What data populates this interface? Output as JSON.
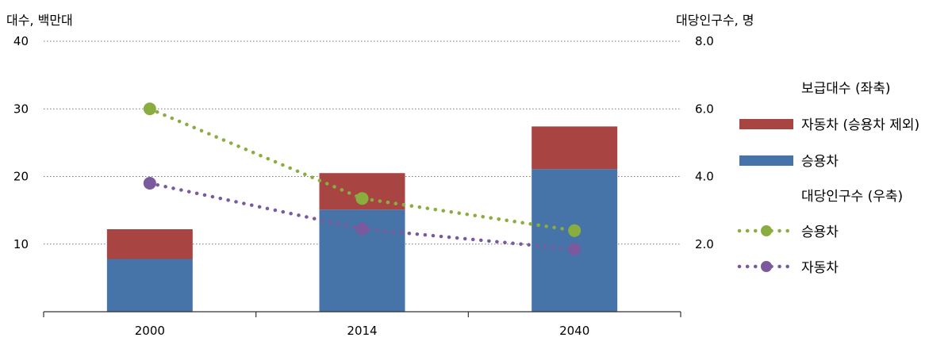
{
  "chart_data": {
    "type": "bar",
    "left_axis_title": "대수, 백만대",
    "right_axis_title": "대당인구수, 명",
    "left_ticks": [
      "10",
      "20",
      "30",
      "40"
    ],
    "right_ticks": [
      "2.0",
      "4.0",
      "6.0",
      "8.0"
    ],
    "ylim_left": [
      0,
      40
    ],
    "ylim_right": [
      0,
      8
    ],
    "categories": [
      "2000",
      "2014",
      "2040"
    ],
    "bar_series": [
      {
        "name": "승용차",
        "values": [
          7.8,
          15.1,
          21.1
        ],
        "color": "#4673a8"
      },
      {
        "name": "자동차 (승용차 제외)",
        "values": [
          4.4,
          5.4,
          6.3
        ],
        "color": "#a84442"
      }
    ],
    "line_series": [
      {
        "name": "승용차",
        "values": [
          6.0,
          3.35,
          2.4
        ],
        "color": "#8aad3f"
      },
      {
        "name": "자동차",
        "values": [
          3.8,
          2.45,
          1.85
        ],
        "color": "#7a5a9c"
      }
    ],
    "grid": true,
    "legend_position": "right",
    "legend": {
      "bar_header": "보급대수 (좌축)",
      "line_header": "대당인구수 (우축)"
    }
  }
}
